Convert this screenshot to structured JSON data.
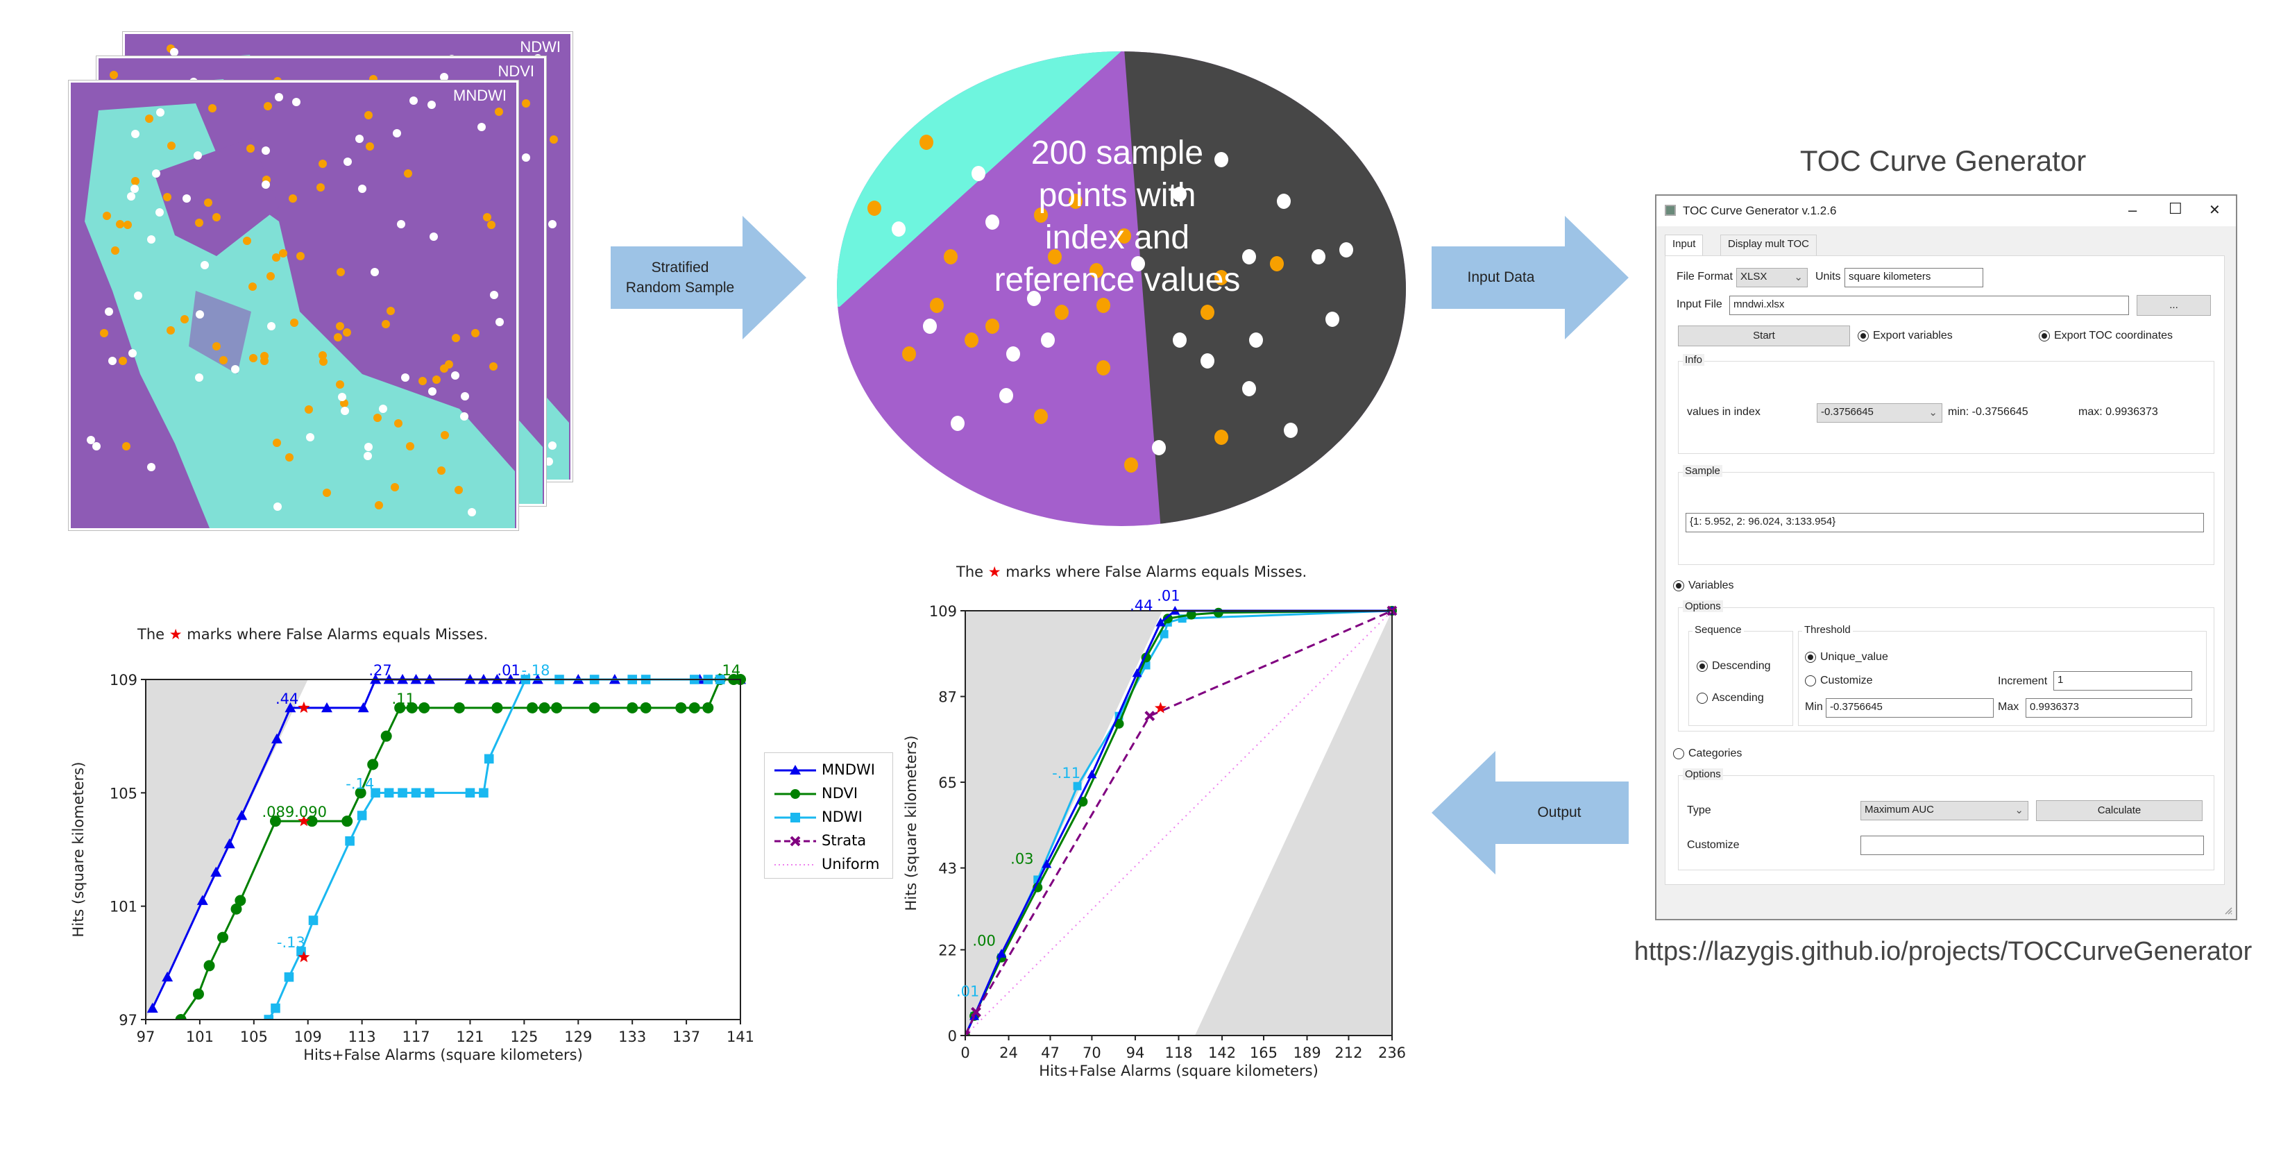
{
  "layers": [
    {
      "label": "NDWI"
    },
    {
      "label": "NDVI"
    },
    {
      "label": "MNDWI"
    }
  ],
  "arrows": {
    "stratified": {
      "line1": "Stratified",
      "line2": "Random Sample"
    },
    "input": {
      "label": "Input Data"
    },
    "output": {
      "label": "Output"
    }
  },
  "ellipse": {
    "lines": [
      "200 sample",
      "points with",
      "index and",
      "reference values"
    ],
    "colors": {
      "water": "#6ef5de",
      "mixed": "#a45fcc",
      "land": "#474747",
      "orange_dot": "#f7a000",
      "white_dot": "#ffffff"
    }
  },
  "app": {
    "heading": "TOC Curve Generator",
    "url": "https://lazygis.github.io/projects/TOCCurveGenerator",
    "window": {
      "title": "TOC Curve Generator v.1.2.6",
      "controls": {
        "minimize": "–",
        "maximize": "☐",
        "close": "✕"
      },
      "tabs": [
        {
          "label": "Input",
          "active": true
        },
        {
          "label": "Display mult TOC",
          "active": false
        }
      ],
      "file_format_label": "File Format",
      "file_format_value": "XLSX",
      "units_label": "Units",
      "units_value": "square kilometers",
      "input_file_label": "Input File",
      "input_file_value": "mndwi.xlsx",
      "browse_label": "...",
      "start_label": "Start",
      "export_variables_label": "Export variables",
      "export_variables_checked": true,
      "export_toc_label": "Export TOC coordinates",
      "export_toc_checked": true,
      "info": {
        "group_label": "Info",
        "values_label": "values in index",
        "values_selected": "-0.3756645",
        "min_text": "min: -0.3756645",
        "max_text": "max: 0.9936373"
      },
      "sample": {
        "group_label": "Sample",
        "value": "{1: 5.952, 2: 96.024, 3:133.954}"
      },
      "variables": {
        "label": "Variables",
        "checked": true,
        "options_label": "Options",
        "sequence_label": "Sequence",
        "descending_label": "Descending",
        "descending_checked": true,
        "ascending_label": "Ascending",
        "threshold_label": "Threshold",
        "unique_label": "Unique_value",
        "unique_checked": true,
        "customize_label": "Customize",
        "increment_label": "Increment",
        "increment_value": "1",
        "min_label": "Min",
        "min_value": "-0.3756645",
        "max_label": "Max",
        "max_value": "0.9936373"
      },
      "categories": {
        "label": "Categories",
        "checked": false,
        "options_label": "Options",
        "type_label": "Type",
        "type_value": "Maximum AUC",
        "calculate_label": "Calculate",
        "customize_label": "Customize",
        "customize_value": ""
      }
    }
  },
  "chart_data": [
    {
      "type": "line",
      "title_before": "The",
      "title_star": "★",
      "title_after": "marks where False Alarms equals Misses.",
      "xlabel": "Hits+False Alarms (square kilometers)",
      "ylabel": "Hits (square kilometers)",
      "xlim": [
        97,
        141
      ],
      "ylim": [
        97,
        109
      ],
      "xticks": [
        "97",
        "101",
        "105",
        "109",
        "113",
        "117",
        "121",
        "125",
        "129",
        "133",
        "137",
        "141"
      ],
      "yticks": [
        "97",
        "101",
        "105",
        "109"
      ],
      "max_region": [
        [
          97,
          97
        ],
        [
          109,
          109
        ],
        [
          97,
          109
        ]
      ],
      "series": [
        {
          "name": "MNDWI",
          "color": "#0000ee",
          "marker": "triangle",
          "x": [
            97.5,
            98.6,
            101.2,
            102.2,
            103.2,
            104.1,
            106.7,
            107.7,
            110.4,
            113.1,
            114,
            115,
            116,
            117,
            118,
            121,
            122,
            123,
            124,
            125,
            126,
            129,
            131.7,
            138,
            141
          ],
          "y": [
            97.4,
            98.5,
            101.2,
            102.2,
            103.2,
            104.2,
            106.9,
            108,
            108,
            108,
            109,
            109,
            109,
            109,
            109,
            109,
            109,
            109,
            109,
            109,
            109,
            109,
            109,
            109,
            109
          ]
        },
        {
          "name": "NDVI",
          "color": "#008000",
          "marker": "circle",
          "x": [
            99.6,
            100.9,
            101.7,
            102.7,
            103.7,
            104,
            106.6,
            109.3,
            111.9,
            112.9,
            113.8,
            114.8,
            115.8,
            116.7,
            117.6,
            120.2,
            123,
            125.6,
            126.5,
            127.4,
            130.2,
            133,
            134,
            136.6,
            137.6,
            138.6,
            139.5,
            140.5,
            141
          ],
          "y": [
            97,
            97.9,
            98.9,
            99.9,
            100.9,
            101.2,
            104,
            104,
            104,
            105,
            106,
            107,
            108,
            108,
            108,
            108,
            108,
            108,
            108,
            108,
            108,
            108,
            108,
            108,
            108,
            108,
            109,
            109,
            109
          ]
        },
        {
          "name": "NDWI",
          "color": "#1ab8f0",
          "marker": "square",
          "x": [
            106.1,
            106.6,
            107.6,
            108.5,
            109.4,
            112.1,
            113,
            114,
            115,
            116,
            117,
            118,
            121,
            122,
            122.4,
            125.1,
            127.6,
            130.2,
            133,
            134,
            137.6,
            138.6,
            139.5
          ],
          "y": [
            97,
            97.4,
            98.5,
            99.4,
            100.5,
            103.3,
            104.2,
            105,
            105,
            105,
            105,
            105,
            105,
            105,
            106.2,
            109,
            109,
            109,
            109,
            109,
            109,
            109,
            109
          ]
        },
        {
          "name": "Strata",
          "color": "#800080",
          "marker": "x",
          "dash": "dashed",
          "x": [],
          "y": []
        },
        {
          "name": "Uniform",
          "color": "#ee82ee",
          "marker": "none",
          "dash": "dotted",
          "x": [],
          "y": []
        }
      ],
      "stars": [
        [
          108.7,
          108
        ],
        [
          108.7,
          104
        ],
        [
          108.7,
          99.2
        ]
      ],
      "annotations": [
        {
          "text": ".44",
          "x": 106.6,
          "y": 108,
          "color": "#0000ee"
        },
        {
          "text": ".27",
          "x": 113.5,
          "y": 109,
          "color": "#0000ee"
        },
        {
          "text": ".01",
          "x": 123,
          "y": 109,
          "color": "#0000ee"
        },
        {
          "text": "-.18",
          "x": 124.8,
          "y": 109,
          "color": "#1ab8f0"
        },
        {
          "text": ".14",
          "x": 139.3,
          "y": 109,
          "color": "#008000"
        },
        {
          "text": ".11",
          "x": 115.2,
          "y": 108,
          "color": "#008000"
        },
        {
          "text": ".089.090",
          "x": 105.6,
          "y": 104,
          "color": "#008000"
        },
        {
          "text": "-.14",
          "x": 111.8,
          "y": 105,
          "color": "#1ab8f0"
        },
        {
          "text": "-.13",
          "x": 106.7,
          "y": 99.4,
          "color": "#1ab8f0"
        }
      ],
      "legend": "right"
    },
    {
      "type": "line",
      "title_before": "The",
      "title_star": "★",
      "title_after": "marks where False Alarms equals Misses.",
      "xlabel": "Hits+False Alarms (square kilometers)",
      "ylabel": "Hits (square kilometers)",
      "xlim": [
        0,
        236
      ],
      "ylim": [
        0,
        109
      ],
      "xticks": [
        "0",
        "24",
        "47",
        "70",
        "94",
        "118",
        "142",
        "165",
        "189",
        "212",
        "236"
      ],
      "yticks": [
        "0",
        "22",
        "43",
        "65",
        "87",
        "109"
      ],
      "max_region": [
        [
          0,
          0
        ],
        [
          109,
          109
        ],
        [
          0,
          109
        ]
      ],
      "min_region": [
        [
          127,
          0
        ],
        [
          236,
          0
        ],
        [
          236,
          109
        ]
      ],
      "series": [
        {
          "name": "NDWI",
          "color": "#1ab8f0",
          "marker": "square",
          "x": [
            0,
            5,
            20,
            40,
            62,
            85,
            100,
            110,
            112,
            120,
            236
          ],
          "y": [
            0,
            5,
            20,
            40,
            64,
            82,
            95,
            103,
            106,
            107,
            109
          ]
        },
        {
          "name": "NDVI",
          "color": "#008000",
          "marker": "circle",
          "x": [
            0,
            5,
            20,
            40,
            65,
            85,
            100,
            112,
            125,
            140,
            236
          ],
          "y": [
            0,
            5,
            20,
            38,
            60,
            80,
            97,
            107,
            108,
            108.5,
            109
          ]
        },
        {
          "name": "MNDWI",
          "color": "#0000ee",
          "marker": "triangle",
          "x": [
            0,
            5,
            20,
            45,
            70,
            95,
            108,
            116,
            236
          ],
          "y": [
            0,
            5,
            21,
            44,
            67,
            93,
            106,
            109,
            109
          ]
        },
        {
          "name": "Strata",
          "color": "#800080",
          "marker": "x",
          "dash": "dashed",
          "x": [
            0,
            5.95,
            102,
            236
          ],
          "y": [
            0,
            6,
            82,
            109
          ]
        },
        {
          "name": "Uniform",
          "color": "#ee82ee",
          "marker": "none",
          "dash": "dotted",
          "x": [
            0,
            236
          ],
          "y": [
            0,
            109
          ]
        }
      ],
      "stars": [
        [
          108,
          84
        ]
      ],
      "annotations": [
        {
          "text": ".01",
          "x": 106,
          "y": 110.5,
          "color": "#0000ee"
        },
        {
          "text": ".44",
          "x": 91,
          "y": 108,
          "color": "#0000ee"
        },
        {
          "text": "-.11",
          "x": 48,
          "y": 65,
          "color": "#1ab8f0"
        },
        {
          "text": ".03",
          "x": 25,
          "y": 43,
          "color": "#008000"
        },
        {
          "text": ".00",
          "x": 4,
          "y": 22,
          "color": "#008000"
        },
        {
          "text": ".01",
          "x": -5,
          "y": 9,
          "color": "#1ab8f0"
        }
      ]
    }
  ]
}
